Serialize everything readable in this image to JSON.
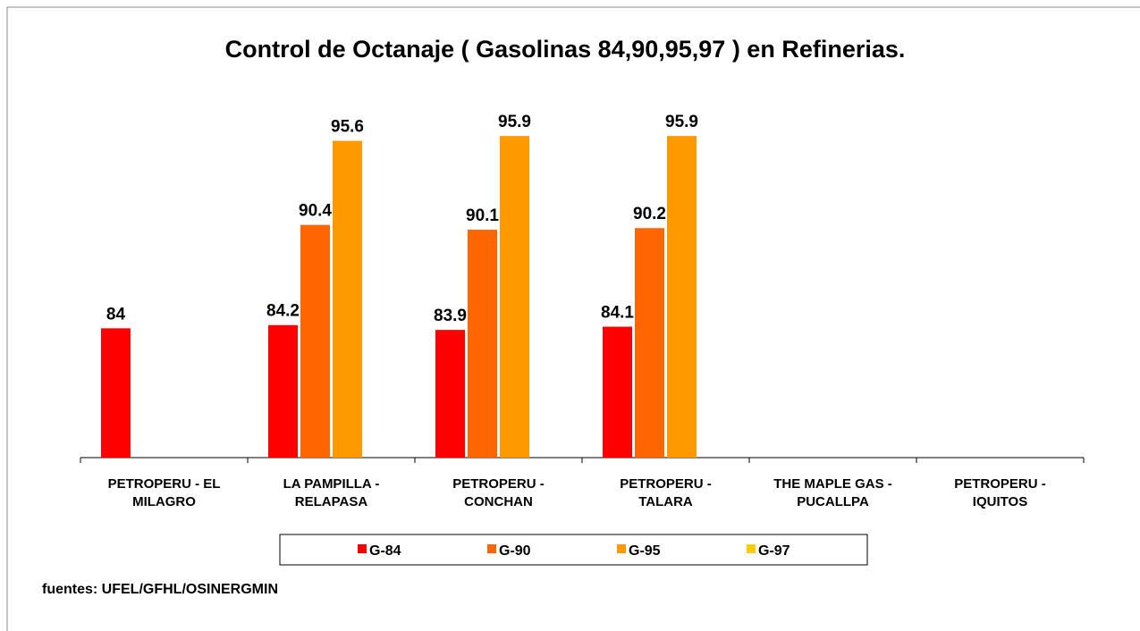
{
  "chart_data": {
    "type": "bar",
    "title": "Control de Octanaje ( Gasolinas 84,90,95,97 ) en Refinerias.",
    "categories": [
      [
        "PETROPERU - EL",
        "MILAGRO"
      ],
      [
        "LA PAMPILLA -",
        "RELAPASA"
      ],
      [
        "PETROPERU -",
        "CONCHAN"
      ],
      [
        "PETROPERU -",
        "TALARA"
      ],
      [
        "THE MAPLE GAS -",
        "PUCALLPA"
      ],
      [
        "PETROPERU -",
        "IQUITOS"
      ]
    ],
    "series": [
      {
        "name": "G-84",
        "color": "#ff0000",
        "values": [
          84,
          84.2,
          83.9,
          84.1,
          null,
          null
        ]
      },
      {
        "name": "G-90",
        "color": "#ff6600",
        "values": [
          null,
          90.4,
          90.1,
          90.2,
          null,
          null
        ]
      },
      {
        "name": "G-95",
        "color": "#ff9900",
        "values": [
          null,
          95.6,
          95.9,
          95.9,
          null,
          null
        ]
      },
      {
        "name": "G-97",
        "color": "#ffcc00",
        "values": [
          null,
          null,
          null,
          null,
          null,
          null
        ]
      }
    ],
    "ylim": [
      76,
      100
    ],
    "legend": "bottom",
    "source": "fuentes: UFEL/GFHL/OSINERGMIN"
  }
}
